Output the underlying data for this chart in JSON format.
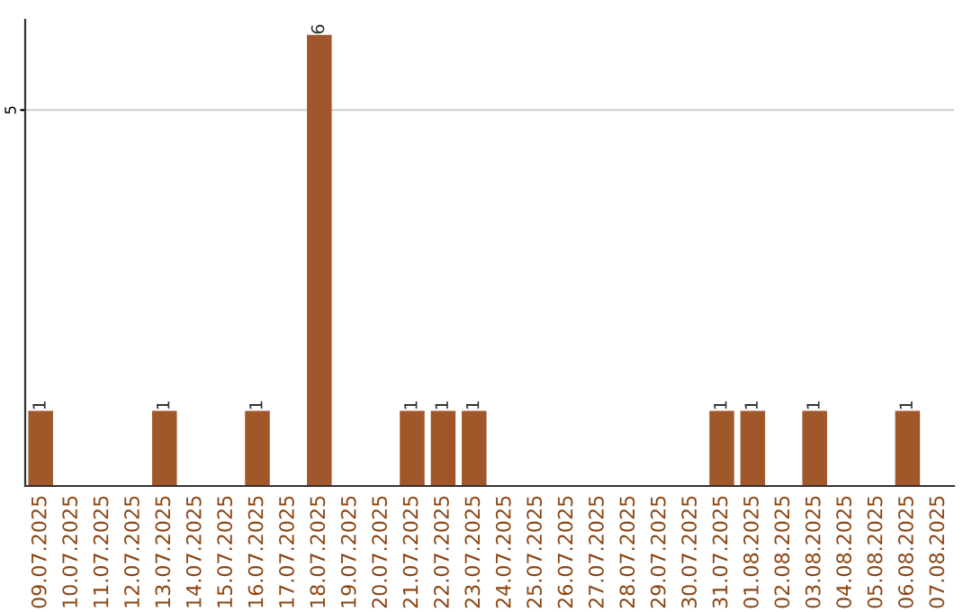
{
  "chart_data": {
    "type": "bar",
    "categories": [
      "09.07.2025",
      "10.07.2025",
      "11.07.2025",
      "12.07.2025",
      "13.07.2025",
      "14.07.2025",
      "15.07.2025",
      "16.07.2025",
      "17.07.2025",
      "18.07.2025",
      "19.07.2025",
      "20.07.2025",
      "21.07.2025",
      "22.07.2025",
      "23.07.2025",
      "24.07.2025",
      "25.07.2025",
      "26.07.2025",
      "27.07.2025",
      "28.07.2025",
      "29.07.2025",
      "30.07.2025",
      "31.07.2025",
      "01.08.2025",
      "02.08.2025",
      "03.08.2025",
      "04.08.2025",
      "05.08.2025",
      "06.08.2025",
      "07.08.2025"
    ],
    "values": [
      1,
      0,
      0,
      0,
      1,
      0,
      0,
      1,
      0,
      6,
      0,
      0,
      1,
      1,
      1,
      0,
      0,
      0,
      0,
      0,
      0,
      0,
      1,
      1,
      0,
      1,
      0,
      0,
      1,
      0
    ],
    "value_labels": [
      "1",
      null,
      null,
      null,
      "1",
      null,
      null,
      "1",
      null,
      "6",
      null,
      null,
      "1",
      "1",
      "1",
      null,
      null,
      null,
      null,
      null,
      null,
      null,
      "1",
      "1",
      null,
      "1",
      null,
      null,
      "1",
      null
    ],
    "color": "#a0582a",
    "ylim": [
      0,
      6.2
    ],
    "yticks": [
      5
    ],
    "grid": "y"
  }
}
